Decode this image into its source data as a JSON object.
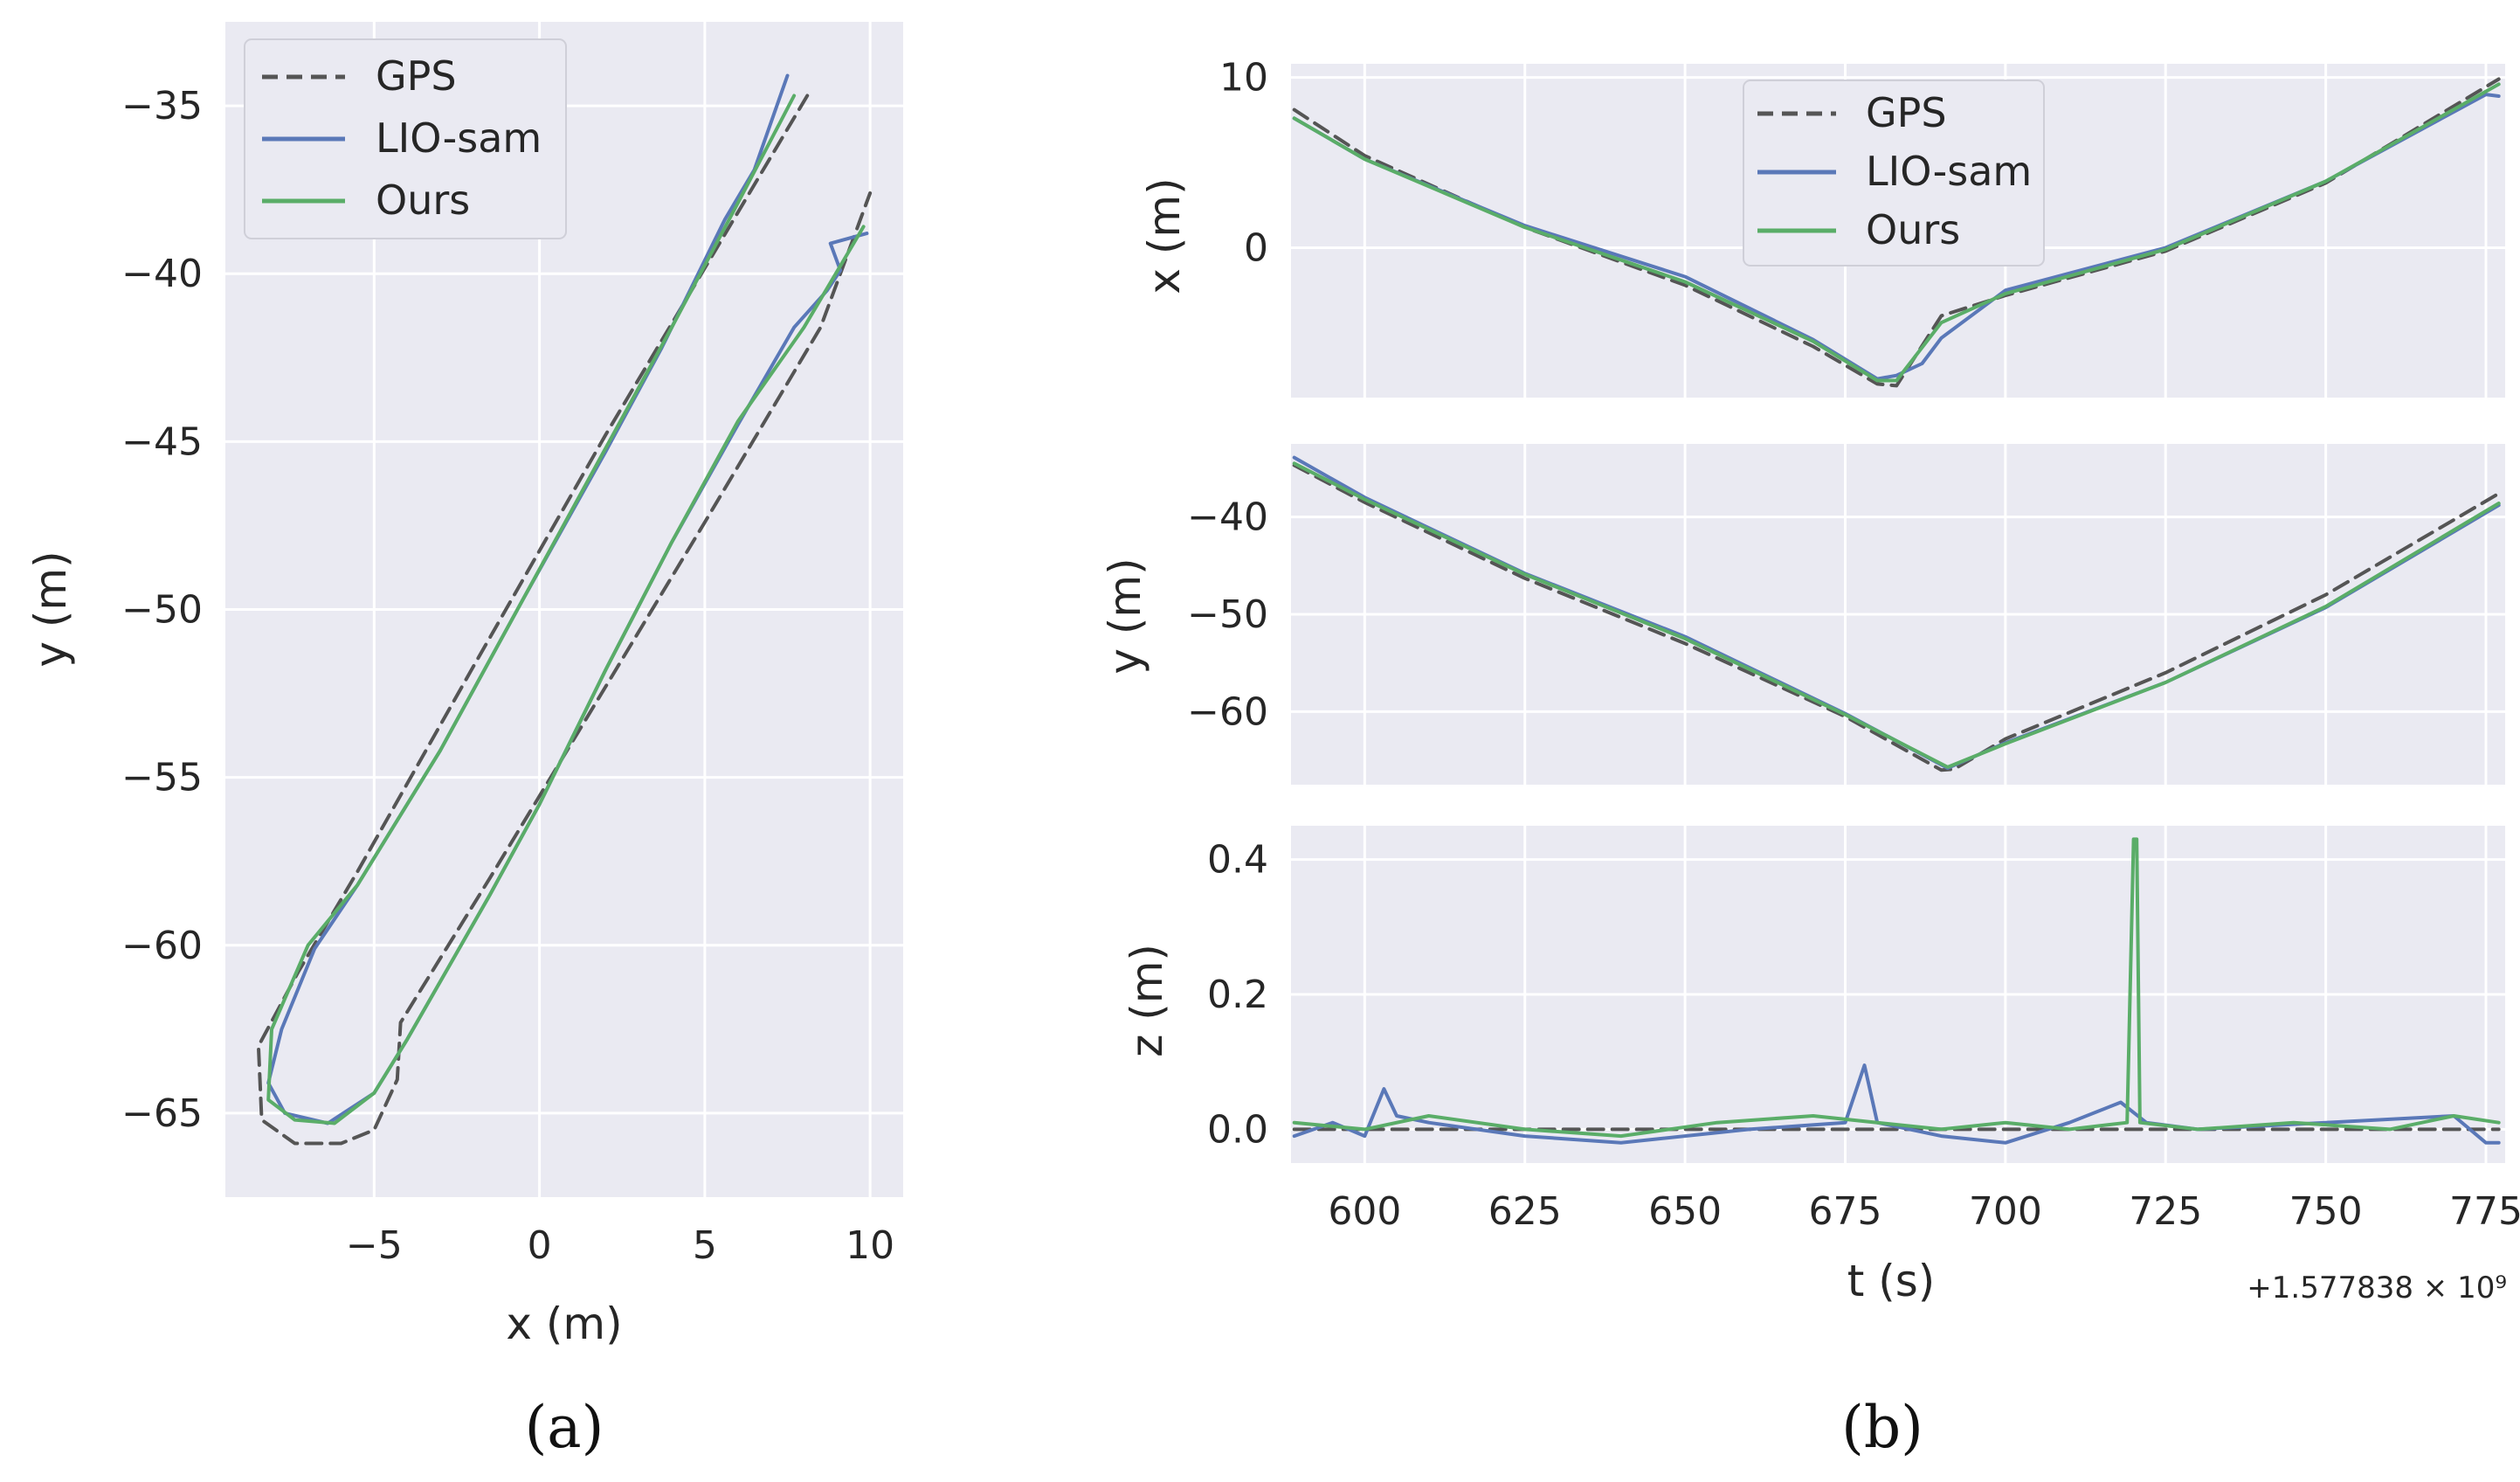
{
  "colors": {
    "gps": "#555555",
    "lio": "#5a78b8",
    "ours": "#5aad68",
    "axes_bg": "#eaeaf2",
    "grid": "#ffffff"
  },
  "legend": [
    "GPS",
    "LIO-sam",
    "Ours"
  ],
  "captions": {
    "a": "(a)",
    "b": "(b)"
  },
  "chart_data": [
    {
      "id": "a",
      "type": "line",
      "xlabel": "x (m)",
      "ylabel": "y (m)",
      "xlim": [
        -9.5,
        11
      ],
      "ylim": [
        -67.5,
        -32.5
      ],
      "xticks": [
        -5,
        0,
        5,
        10
      ],
      "xtick_labels": [
        "−5",
        "0",
        "5",
        "10"
      ],
      "yticks": [
        -35,
        -40,
        -45,
        -50,
        -55,
        -60,
        -65
      ],
      "ytick_labels": [
        "−35",
        "−40",
        "−45",
        "−50",
        "−55",
        "−60",
        "−65"
      ],
      "series": [
        {
          "name": "GPS",
          "x": [
            8.1,
            2,
            -2,
            -5.5,
            -7.3,
            -8.5,
            -8.4,
            -7.4,
            -6,
            -5,
            -4.3,
            -4.2,
            -1.5,
            2,
            5,
            8.5,
            10
          ],
          "y": [
            -34.7,
            -44.8,
            -51.7,
            -57.8,
            -60.8,
            -63,
            -65.2,
            -65.9,
            -65.9,
            -65.5,
            -64,
            -62.3,
            -58,
            -52.3,
            -47.4,
            -41.6,
            -37.6
          ]
        },
        {
          "name": "LIO-sam",
          "x": [
            7.5,
            6.5,
            5.6,
            3.7,
            2,
            -0.5,
            -3,
            -5.5,
            -6.8,
            -7.8,
            -8.2,
            -7.7,
            -6.4,
            -5,
            -4,
            -1.5,
            0,
            2,
            4,
            6,
            7.7,
            8.7,
            9.1,
            8.8,
            9.9
          ],
          "y": [
            -34.1,
            -36.9,
            -38.4,
            -42.2,
            -45.3,
            -49.7,
            -54.2,
            -58.2,
            -60.1,
            -62.5,
            -64.1,
            -65,
            -65.3,
            -64.4,
            -62.8,
            -58.5,
            -55.8,
            -51.8,
            -48,
            -44.5,
            -41.6,
            -40.5,
            -39.9,
            -39.1,
            -38.8
          ]
        },
        {
          "name": "Ours",
          "x": [
            7.7,
            6,
            4,
            2,
            -0.5,
            -3,
            -5.5,
            -7,
            -8.1,
            -8.2,
            -7.4,
            -6.2,
            -5,
            -4,
            -1.5,
            0,
            2,
            4,
            6,
            8,
            9.8
          ],
          "y": [
            -34.7,
            -37.9,
            -41.6,
            -45.2,
            -49.7,
            -54.2,
            -58.2,
            -60,
            -62.5,
            -64.6,
            -65.2,
            -65.3,
            -64.4,
            -62.8,
            -58.5,
            -55.8,
            -51.8,
            -48,
            -44.4,
            -41.6,
            -38.6
          ]
        }
      ]
    },
    {
      "id": "b1",
      "type": "line",
      "ylabel": "x (m)",
      "xlim": [
        588.5,
        778
      ],
      "ylim": [
        -8.8,
        10.8
      ],
      "xticks": [
        600,
        625,
        650,
        675,
        700,
        725,
        750,
        775
      ],
      "yticks": [
        10,
        0
      ],
      "ytick_labels": [
        "10",
        "0"
      ],
      "series": [
        {
          "name": "GPS",
          "t": [
            589,
            600,
            625,
            650,
            670,
            680,
            683,
            690,
            700,
            725,
            750,
            777
          ],
          "values": [
            8.1,
            5.4,
            1.2,
            -2.2,
            -5.8,
            -8,
            -8.1,
            -4,
            -2.8,
            -0.2,
            3.8,
            9.9
          ]
        },
        {
          "name": "LIO-sam",
          "t": [
            589,
            600,
            625,
            650,
            670,
            680,
            683,
            687,
            690,
            700,
            725,
            750,
            775,
            777
          ],
          "values": [
            7.6,
            5.2,
            1.3,
            -1.7,
            -5.4,
            -7.7,
            -7.5,
            -6.8,
            -5.3,
            -2.5,
            0,
            3.9,
            9,
            8.9
          ]
        },
        {
          "name": "Ours",
          "t": [
            589,
            600,
            625,
            650,
            670,
            680,
            683,
            690,
            700,
            725,
            750,
            777
          ],
          "values": [
            7.6,
            5.2,
            1.2,
            -2,
            -5.5,
            -7.8,
            -7.8,
            -4.4,
            -2.7,
            -0.1,
            3.9,
            9.6
          ]
        }
      ]
    },
    {
      "id": "b2",
      "type": "line",
      "ylabel": "y (m)",
      "xlim": [
        588.5,
        778
      ],
      "ylim": [
        -67.5,
        -32.5
      ],
      "xticks": [
        600,
        625,
        650,
        675,
        700,
        725,
        750,
        775
      ],
      "yticks": [
        -40,
        -50,
        -60
      ],
      "ytick_labels": [
        "−40",
        "−50",
        "−60"
      ],
      "series": [
        {
          "name": "GPS",
          "t": [
            589,
            600,
            625,
            650,
            675,
            690,
            692,
            700,
            725,
            750,
            777
          ],
          "values": [
            -34.7,
            -38.5,
            -46.3,
            -53,
            -60.5,
            -66,
            -65.9,
            -62.8,
            -56,
            -48,
            -37.6
          ]
        },
        {
          "name": "LIO-sam",
          "t": [
            589,
            600,
            625,
            650,
            675,
            691,
            700,
            725,
            750,
            777
          ],
          "values": [
            -33.9,
            -38,
            -45.8,
            -52.3,
            -60.2,
            -65.8,
            -63.2,
            -57,
            -49.3,
            -38.8
          ]
        },
        {
          "name": "Ours",
          "t": [
            589,
            600,
            625,
            650,
            675,
            691,
            700,
            725,
            750,
            777
          ],
          "values": [
            -34.5,
            -38.2,
            -45.9,
            -52.5,
            -60.3,
            -65.7,
            -63.3,
            -57,
            -49.2,
            -38.6
          ]
        }
      ]
    },
    {
      "id": "b3",
      "type": "line",
      "ylabel": "z (m)",
      "xlabel": "t (s)",
      "x_offset_label": "+1.577838 × 10⁹",
      "xlim": [
        588.5,
        778
      ],
      "ylim": [
        -0.05,
        0.45
      ],
      "xticks": [
        600,
        625,
        650,
        675,
        700,
        725,
        750,
        775
      ],
      "xtick_labels": [
        "600",
        "625",
        "650",
        "675",
        "700",
        "725",
        "750",
        "775"
      ],
      "yticks": [
        0.4,
        0.2,
        0.0
      ],
      "ytick_labels": [
        "0.4",
        "0.2",
        "0.0"
      ],
      "series": [
        {
          "name": "GPS",
          "t": [
            589,
            777
          ],
          "values": [
            0,
            0
          ]
        },
        {
          "name": "LIO-sam",
          "t": [
            589,
            595,
            600,
            603,
            605,
            610,
            625,
            640,
            660,
            675,
            678,
            680,
            690,
            700,
            710,
            718,
            722,
            730,
            750,
            770,
            775,
            777
          ],
          "values": [
            -0.01,
            0.01,
            -0.01,
            0.06,
            0.02,
            0.01,
            -0.01,
            -0.02,
            0.0,
            0.01,
            0.095,
            0.01,
            -0.01,
            -0.02,
            0.01,
            0.04,
            0.01,
            0.0,
            0.01,
            0.02,
            -0.02,
            -0.02
          ]
        },
        {
          "name": "Ours",
          "t": [
            589,
            600,
            610,
            625,
            640,
            655,
            670,
            680,
            690,
            700,
            710,
            719,
            720,
            720.5,
            721,
            730,
            745,
            760,
            770,
            777
          ],
          "values": [
            0.01,
            0.0,
            0.02,
            0.0,
            -0.01,
            0.01,
            0.02,
            0.01,
            0.0,
            0.01,
            0.0,
            0.01,
            0.43,
            0.43,
            0.01,
            0.0,
            0.01,
            0.0,
            0.02,
            0.01
          ]
        }
      ]
    }
  ]
}
